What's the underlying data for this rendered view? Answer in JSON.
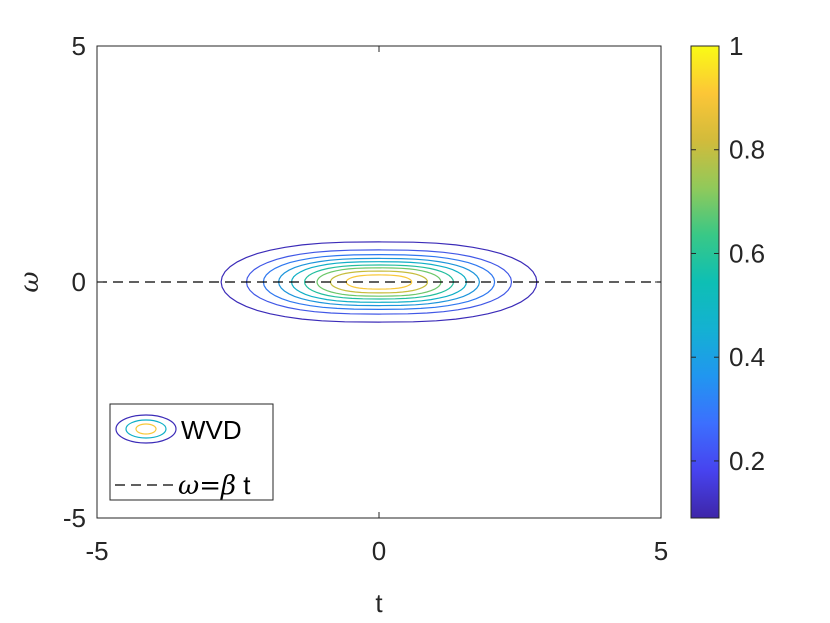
{
  "chart_data": {
    "type": "contour",
    "xlabel": "t",
    "ylabel": "ω",
    "xlim": [
      -5,
      5
    ],
    "ylim": [
      -5,
      5
    ],
    "xticks": [
      "-5",
      "0",
      "5"
    ],
    "yticks": [
      "-5",
      "0",
      "5"
    ],
    "grid": false,
    "series": [
      {
        "name": "WVD",
        "kind": "contour",
        "center": [
          0,
          0
        ],
        "levels": [
          {
            "value": 0.1,
            "t_half_width": 2.8,
            "w_half_width": 0.85,
            "color": "#3b2bb8"
          },
          {
            "value": 0.2,
            "t_half_width": 2.35,
            "w_half_width": 0.68,
            "color": "#4158e6"
          },
          {
            "value": 0.3,
            "t_half_width": 2.05,
            "w_half_width": 0.58,
            "color": "#2f78f0"
          },
          {
            "value": 0.4,
            "t_half_width": 1.78,
            "w_half_width": 0.5,
            "color": "#1d95db"
          },
          {
            "value": 0.5,
            "t_half_width": 1.55,
            "w_half_width": 0.43,
            "color": "#10afc6"
          },
          {
            "value": 0.6,
            "t_half_width": 1.32,
            "w_half_width": 0.36,
            "color": "#22be9e"
          },
          {
            "value": 0.7,
            "t_half_width": 1.1,
            "w_half_width": 0.3,
            "color": "#6cc76a"
          },
          {
            "value": 0.8,
            "t_half_width": 0.86,
            "w_half_width": 0.23,
            "color": "#c6bc3c"
          },
          {
            "value": 0.9,
            "t_half_width": 0.58,
            "w_half_width": 0.15,
            "color": "#f8c83a"
          }
        ]
      },
      {
        "name": "ω=β t",
        "kind": "line",
        "style": "dashed",
        "color": "#000000",
        "x": [
          -5,
          5
        ],
        "y": [
          0,
          0
        ]
      }
    ],
    "legend": {
      "placement": "bottom-left",
      "entries": [
        {
          "label_text": "WVD"
        },
        {
          "label_symbols": "ω=β",
          "label_tail": " t"
        }
      ]
    },
    "colorbar": {
      "range": [
        0.09,
        1
      ],
      "ticks": [
        0.2,
        0.4,
        0.6,
        0.8,
        1
      ],
      "tick_labels": [
        "0.2",
        "0.4",
        "0.6",
        "0.8",
        "1"
      ],
      "colormap": [
        "#3e26a8",
        "#4743ef",
        "#3c6ffe",
        "#2196f0",
        "#14b1d2",
        "#0ebfb4",
        "#39c886",
        "#91c95a",
        "#d2bb3b",
        "#fcc637",
        "#f9fb15"
      ]
    }
  }
}
